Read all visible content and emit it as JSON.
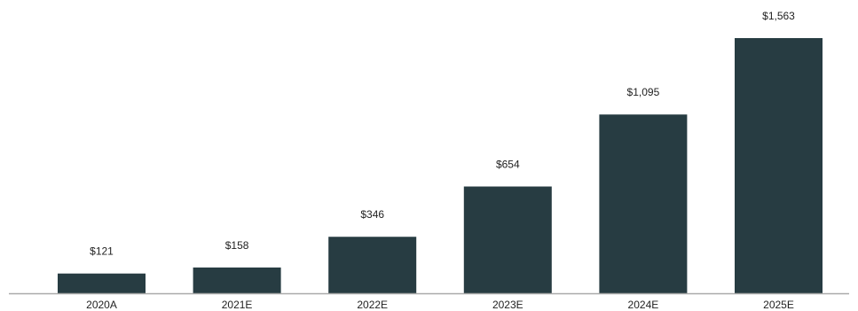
{
  "chart_data": {
    "type": "bar",
    "title": "",
    "xlabel": "",
    "ylabel": "",
    "categories": [
      "2020A",
      "2021E",
      "2022E",
      "2023E",
      "2024E",
      "2025E"
    ],
    "values": [
      121,
      158,
      346,
      654,
      1095,
      1563
    ],
    "data_labels": [
      "$121",
      "$158",
      "$346",
      "$654",
      "$1,095",
      "$1,563"
    ],
    "ylim": [
      0,
      1563
    ],
    "grid": false,
    "legend": "none",
    "bar_color": "#273c42",
    "axis_color": "#aaaaaa"
  }
}
